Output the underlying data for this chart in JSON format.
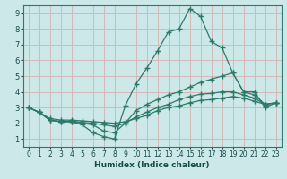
{
  "xlabel": "Humidex (Indice chaleur)",
  "bg_color": "#cce8e8",
  "grid_color": "#d4b8b8",
  "line_color": "#2d7a6a",
  "xlim": [
    -0.5,
    23.5
  ],
  "ylim": [
    0.5,
    9.5
  ],
  "xticks": [
    0,
    1,
    2,
    3,
    4,
    5,
    6,
    7,
    8,
    9,
    10,
    11,
    12,
    13,
    14,
    15,
    16,
    17,
    18,
    19,
    20,
    21,
    22,
    23
  ],
  "yticks": [
    1,
    2,
    3,
    4,
    5,
    6,
    7,
    8,
    9
  ],
  "lines": [
    {
      "x": [
        0,
        1,
        2,
        3,
        4,
        5,
        6,
        7,
        8,
        9,
        10,
        11,
        12,
        13,
        14,
        15,
        16,
        17,
        18,
        19,
        20,
        21,
        22,
        23
      ],
      "y": [
        3.0,
        2.7,
        2.2,
        2.1,
        2.1,
        1.9,
        1.4,
        1.15,
        1.0,
        3.1,
        4.5,
        5.5,
        6.6,
        7.8,
        8.0,
        9.3,
        8.8,
        7.2,
        6.8,
        5.2,
        4.0,
        4.0,
        3.0,
        3.3
      ]
    },
    {
      "x": [
        0,
        1,
        2,
        3,
        4,
        5,
        6,
        7,
        8,
        9,
        10,
        11,
        12,
        13,
        14,
        15,
        16,
        17,
        18,
        19,
        20,
        21,
        22,
        23
      ],
      "y": [
        3.0,
        2.7,
        2.2,
        2.1,
        2.1,
        2.0,
        1.9,
        1.5,
        1.4,
        2.0,
        2.8,
        3.2,
        3.5,
        3.8,
        4.0,
        4.3,
        4.6,
        4.8,
        5.0,
        5.2,
        4.0,
        3.8,
        3.2,
        3.3
      ]
    },
    {
      "x": [
        0,
        1,
        2,
        3,
        4,
        5,
        6,
        7,
        8,
        9,
        10,
        11,
        12,
        13,
        14,
        15,
        16,
        17,
        18,
        19,
        20,
        21,
        22,
        23
      ],
      "y": [
        3.0,
        2.7,
        2.2,
        2.1,
        2.15,
        2.05,
        2.0,
        1.9,
        1.8,
        2.0,
        2.4,
        2.7,
        3.0,
        3.2,
        3.5,
        3.7,
        3.85,
        3.9,
        4.0,
        4.0,
        3.8,
        3.6,
        3.2,
        3.3
      ]
    },
    {
      "x": [
        0,
        1,
        2,
        3,
        4,
        5,
        6,
        7,
        8,
        9,
        10,
        11,
        12,
        13,
        14,
        15,
        16,
        17,
        18,
        19,
        20,
        21,
        22,
        23
      ],
      "y": [
        3.0,
        2.7,
        2.3,
        2.2,
        2.2,
        2.15,
        2.1,
        2.05,
        2.0,
        2.1,
        2.3,
        2.5,
        2.8,
        3.0,
        3.1,
        3.3,
        3.45,
        3.5,
        3.6,
        3.7,
        3.6,
        3.4,
        3.2,
        3.3
      ]
    }
  ]
}
